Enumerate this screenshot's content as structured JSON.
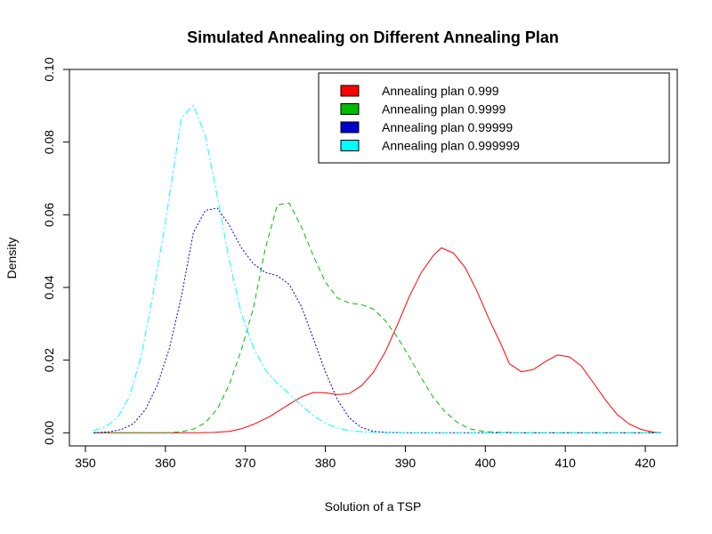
{
  "chart_data": {
    "type": "line",
    "title": "Simulated Annealing on Different Annealing Plan",
    "xlabel": "Solution of a TSP",
    "ylabel": "Density",
    "xlim": [
      348,
      424
    ],
    "ylim": [
      -0.0036,
      0.1
    ],
    "xticks": [
      350,
      360,
      370,
      380,
      390,
      400,
      410,
      420
    ],
    "yticks": [
      0.0,
      0.02,
      0.04,
      0.06,
      0.08,
      0.1
    ],
    "ytick_labels": [
      "0.00",
      "0.02",
      "0.04",
      "0.06",
      "0.08",
      "0.10"
    ],
    "legend_position": "top-right",
    "grid": false,
    "series": [
      {
        "name": "Annealing plan 0.999",
        "color": "#ff0000",
        "dash": "solid",
        "x": [
          351,
          360,
          364,
          366,
          368,
          369.5,
          371,
          373,
          375,
          377,
          378.5,
          380,
          381.5,
          383,
          384.5,
          386,
          387.5,
          389,
          390.5,
          392,
          393.5,
          394.5,
          396,
          397.5,
          399,
          400.5,
          402,
          403,
          404.5,
          406,
          407.5,
          409,
          410.5,
          412,
          413.5,
          415,
          416.5,
          418,
          419.5,
          421,
          422
        ],
        "y": [
          0.0,
          0.0,
          0.0,
          0.0001,
          0.0004,
          0.0011,
          0.0023,
          0.0044,
          0.0072,
          0.0099,
          0.0111,
          0.011,
          0.0105,
          0.0108,
          0.0129,
          0.0166,
          0.0223,
          0.0297,
          0.0375,
          0.0441,
          0.0488,
          0.0509,
          0.0495,
          0.0454,
          0.0388,
          0.0311,
          0.0242,
          0.019,
          0.0168,
          0.0174,
          0.0196,
          0.0214,
          0.0209,
          0.0184,
          0.0138,
          0.0091,
          0.005,
          0.0024,
          0.0009,
          0.0002,
          0.0
        ]
      },
      {
        "name": "Annealing plan 0.9999",
        "color": "#00bb00",
        "dash": "6,4",
        "x": [
          351,
          360,
          362,
          363.5,
          365,
          366.5,
          368,
          369.5,
          371,
          372.5,
          374,
          375.5,
          377,
          378.5,
          380,
          381.5,
          383,
          384.5,
          386,
          387.5,
          389,
          390.5,
          392,
          393.5,
          395,
          396.5,
          398,
          400,
          404,
          412,
          422
        ],
        "y": [
          0.0,
          0.0,
          0.0003,
          0.001,
          0.0028,
          0.0066,
          0.0133,
          0.0228,
          0.0343,
          0.0508,
          0.0628,
          0.0632,
          0.0567,
          0.0487,
          0.0415,
          0.0371,
          0.0357,
          0.0353,
          0.0341,
          0.0308,
          0.0263,
          0.0209,
          0.0151,
          0.0097,
          0.0057,
          0.0029,
          0.0011,
          0.0003,
          0.0,
          0.0,
          0.0
        ]
      },
      {
        "name": "Annealing plan 0.99999",
        "color": "#0000cc",
        "dash": "2,2",
        "x": [
          351,
          353,
          354.5,
          356,
          357.5,
          359,
          360.5,
          362,
          363.5,
          365,
          366.5,
          368,
          369.5,
          371,
          372.5,
          374,
          375.5,
          377,
          378.5,
          380,
          381.5,
          383,
          384.5,
          386,
          388,
          391,
          395,
          422
        ],
        "y": [
          0.0,
          0.0003,
          0.0009,
          0.0025,
          0.0064,
          0.0132,
          0.0232,
          0.0375,
          0.0551,
          0.0612,
          0.0618,
          0.0571,
          0.0509,
          0.0465,
          0.0441,
          0.0432,
          0.0408,
          0.0348,
          0.0259,
          0.0168,
          0.0091,
          0.0041,
          0.0015,
          0.0004,
          0.0001,
          0.0,
          0.0,
          0.0
        ]
      },
      {
        "name": "Annealing plan 0.999999",
        "color": "#00ffff",
        "dash": "8,3,2,3",
        "x": [
          351,
          352.5,
          354,
          355.5,
          357,
          358.5,
          360,
          361,
          362,
          363.5,
          365,
          366.5,
          368,
          369.5,
          371,
          372.5,
          374,
          375.5,
          377,
          378.5,
          380,
          381.5,
          383,
          385,
          388,
          392,
          422
        ],
        "y": [
          0.0006,
          0.0016,
          0.0041,
          0.0099,
          0.0213,
          0.0387,
          0.0578,
          0.0722,
          0.0866,
          0.0901,
          0.0817,
          0.0649,
          0.0474,
          0.0329,
          0.0235,
          0.0173,
          0.0136,
          0.0107,
          0.0076,
          0.0047,
          0.0026,
          0.0013,
          0.0006,
          0.0002,
          0.0,
          0.0,
          0.0
        ]
      }
    ]
  }
}
